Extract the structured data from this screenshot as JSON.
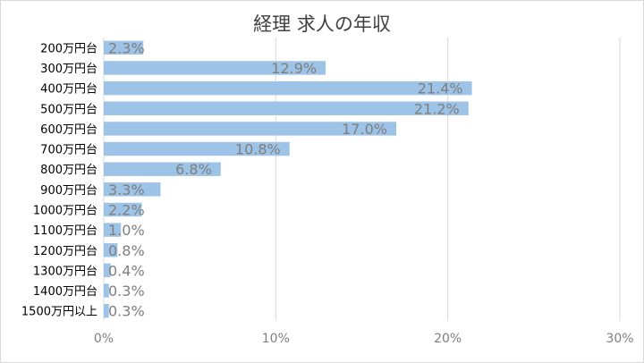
{
  "chart_data": {
    "type": "bar",
    "orientation": "horizontal",
    "title": "経理 求人の年収",
    "categories": [
      "200万円台",
      "300万円台",
      "400万円台",
      "500万円台",
      "600万円台",
      "700万円台",
      "800万円台",
      "900万円台",
      "1000万円台",
      "1100万円台",
      "1200万円台",
      "1300万円台",
      "1400万円台",
      "1500万円以上"
    ],
    "values": [
      2.3,
      12.9,
      21.4,
      21.2,
      17.0,
      10.8,
      6.8,
      3.3,
      2.2,
      1.0,
      0.8,
      0.4,
      0.3,
      0.3
    ],
    "data_labels": [
      "2.3%",
      "12.9%",
      "21.4%",
      "21.2%",
      "17.0%",
      "10.8%",
      "6.8%",
      "3.3%",
      "2.2%",
      "1.0%",
      "0.8%",
      "0.4%",
      "0.3%",
      "0.3%"
    ],
    "xlim": [
      0,
      30
    ],
    "x_ticks": [
      0,
      10,
      20,
      30
    ],
    "x_tick_labels": [
      "0%",
      "10%",
      "20%",
      "30%"
    ],
    "grid": "vertical",
    "colors": {
      "bar": "#9dc3e6",
      "grid": "#d9d9d9",
      "data_label": "#7f7f7f",
      "tick_label": "#7f7f7f"
    }
  }
}
